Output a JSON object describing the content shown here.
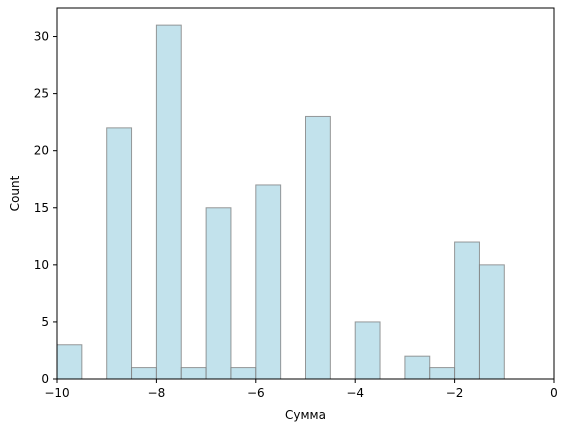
{
  "chart_data": {
    "type": "bar",
    "subtype": "histogram",
    "xlabel": "Сумма",
    "ylabel": "Count",
    "xlim": [
      -10,
      0
    ],
    "ylim": [
      0,
      32.5
    ],
    "xticks": [
      -10,
      -8,
      -6,
      -4,
      -2,
      0
    ],
    "yticks": [
      0,
      5,
      10,
      15,
      20,
      25,
      30
    ],
    "xtick_labels": [
      "−10",
      "−8",
      "−6",
      "−4",
      "−2",
      "0"
    ],
    "ytick_labels": [
      "0",
      "5",
      "10",
      "15",
      "20",
      "25",
      "30"
    ],
    "bin_width": 0.5,
    "bins": [
      {
        "start": -10.0,
        "end": -9.5,
        "count": 3
      },
      {
        "start": -9.0,
        "end": -8.5,
        "count": 22
      },
      {
        "start": -8.5,
        "end": -8.0,
        "count": 1
      },
      {
        "start": -8.0,
        "end": -7.5,
        "count": 31
      },
      {
        "start": -7.5,
        "end": -7.0,
        "count": 1
      },
      {
        "start": -7.0,
        "end": -6.5,
        "count": 15
      },
      {
        "start": -6.5,
        "end": -6.0,
        "count": 1
      },
      {
        "start": -6.0,
        "end": -5.5,
        "count": 17
      },
      {
        "start": -5.0,
        "end": -4.5,
        "count": 23
      },
      {
        "start": -4.0,
        "end": -3.5,
        "count": 5
      },
      {
        "start": -3.0,
        "end": -2.5,
        "count": 2
      },
      {
        "start": -2.5,
        "end": -2.0,
        "count": 1
      },
      {
        "start": -2.0,
        "end": -1.5,
        "count": 12
      },
      {
        "start": -1.5,
        "end": -1.0,
        "count": 10
      }
    ],
    "bar_color": "#add8e6",
    "edge_color": "#808080",
    "grid": false,
    "legend": false
  }
}
